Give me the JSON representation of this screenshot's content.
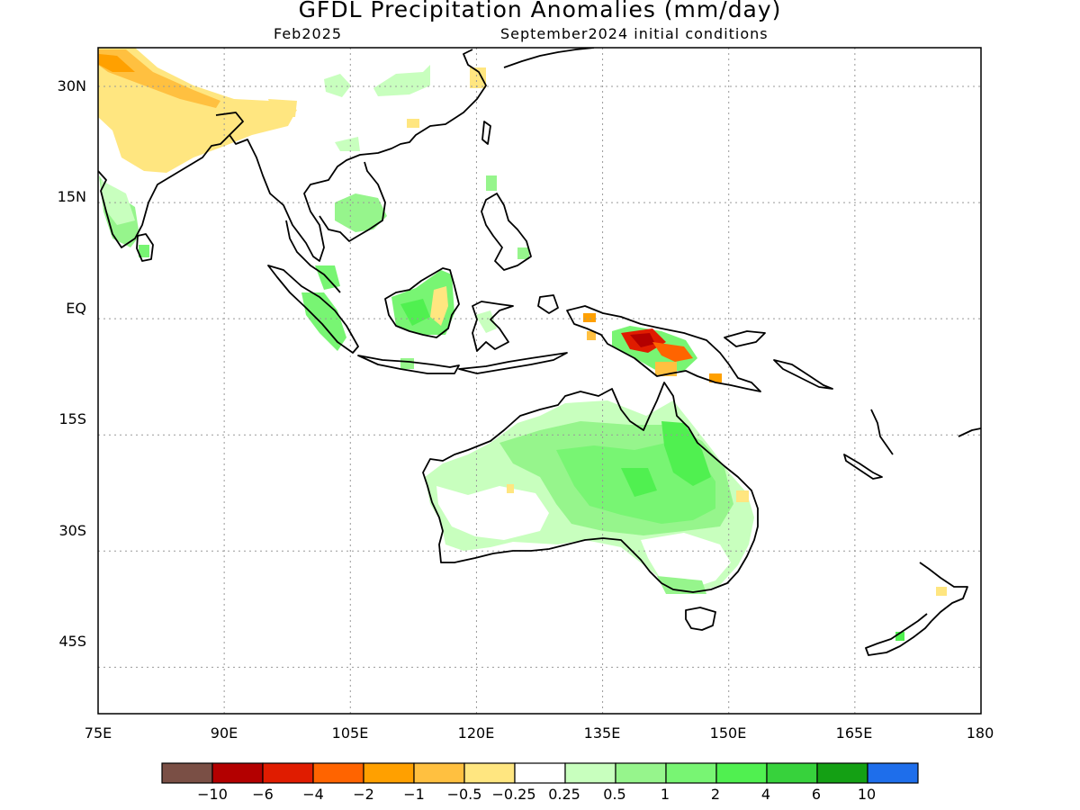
{
  "title": "GFDL Precipitation Anomalies (mm/day)",
  "subtitle_left": "Feb2025",
  "subtitle_right": "September2024 initial conditions",
  "map": {
    "lon_range": [
      75,
      180
    ],
    "lat_range": [
      -51,
      35
    ],
    "lon_ticks": [
      {
        "value": 75,
        "label": "75E"
      },
      {
        "value": 90,
        "label": "90E"
      },
      {
        "value": 105,
        "label": "105E"
      },
      {
        "value": 120,
        "label": "120E"
      },
      {
        "value": 135,
        "label": "135E"
      },
      {
        "value": 150,
        "label": "150E"
      },
      {
        "value": 165,
        "label": "165E"
      },
      {
        "value": 180,
        "label": "180"
      }
    ],
    "lat_ticks": [
      {
        "value": 30,
        "label": "30N"
      },
      {
        "value": 15,
        "label": "15N"
      },
      {
        "value": 0,
        "label": "EQ"
      },
      {
        "value": -15,
        "label": "15S"
      },
      {
        "value": -30,
        "label": "30S"
      },
      {
        "value": -45,
        "label": "45S"
      }
    ],
    "grid": true
  },
  "colorbar": {
    "colors": [
      "#7a4f45",
      "#b30000",
      "#e01c00",
      "#ff6400",
      "#ffa000",
      "#ffc040",
      "#ffe680",
      "#ffffff",
      "#c8ffbe",
      "#96f58c",
      "#78f573",
      "#50f050",
      "#37d23c",
      "#14a014",
      "#1e6eeb"
    ],
    "labels": [
      "−10",
      "−6",
      "−4",
      "−2",
      "−1",
      "−0.5",
      "−0.25",
      "0.25",
      "0.5",
      "1",
      "2",
      "4",
      "6",
      "10"
    ]
  },
  "legend_colors": {
    "dry_light": "#ffe680",
    "dry_mid": "#ffc040",
    "dry_orange": "#ffa000",
    "dry_strong": "#ff6400",
    "dry_red": "#e01c00",
    "dry_dark": "#b30000",
    "wet_light": "#c8ffbe",
    "wet_mid": "#96f58c",
    "wet_strong": "#78f573",
    "wet_heavy": "#50f050"
  }
}
